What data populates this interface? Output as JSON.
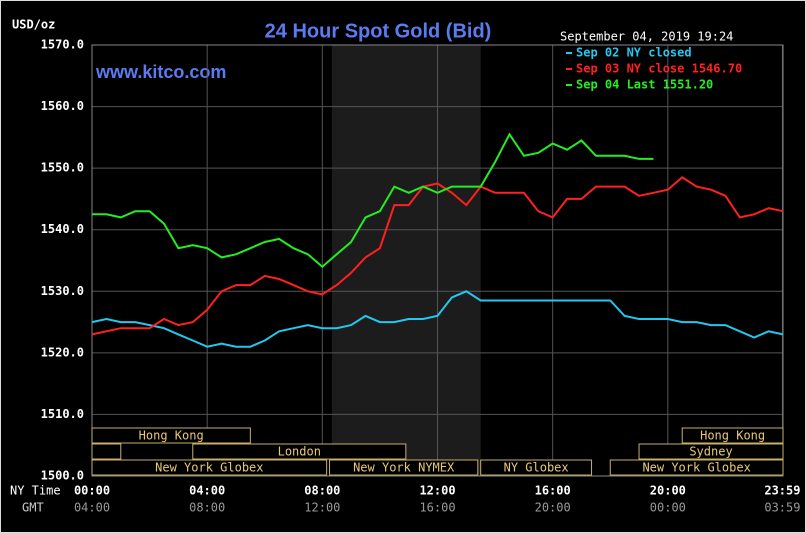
{
  "chart_data": {
    "type": "line",
    "title": "24 Hour Spot Gold (Bid)",
    "unit_label": "USD/oz",
    "timestamp": "September 04, 2019 19:24",
    "watermark": "www.kitco.com",
    "x_row_labels": [
      "NY Time",
      "GMT"
    ],
    "x": [
      0,
      0.5,
      1,
      1.5,
      2,
      2.5,
      3,
      3.5,
      4,
      4.5,
      5,
      5.5,
      6,
      6.5,
      7,
      7.5,
      8,
      8.5,
      9,
      9.5,
      10,
      10.5,
      11,
      11.5,
      12,
      12.5,
      13,
      13.5,
      14,
      14.5,
      15,
      15.5,
      16,
      16.5,
      17,
      17.5,
      18,
      18.5,
      19,
      19.5,
      20,
      20.5,
      21,
      21.5,
      22,
      22.5,
      23,
      23.5,
      24
    ],
    "series": [
      {
        "name": "Sep 02 NY closed",
        "color": "#22c8f0",
        "values": [
          1525,
          1525.5,
          1525,
          1525,
          1524.5,
          1524,
          1523,
          1522,
          1521,
          1521.5,
          1521,
          1521,
          1522,
          1523.5,
          1524,
          1524.5,
          1524,
          1524,
          1524.5,
          1526,
          1525,
          1525,
          1525.5,
          1525.5,
          1526,
          1529,
          1530,
          1528.5,
          1528.5,
          1528.5,
          1528.5,
          1528.5,
          1528.5,
          1528.5,
          1528.5,
          1528.5,
          1528.5,
          1526,
          1525.5,
          1525.5,
          1525.5,
          1525,
          1525,
          1524.5,
          1524.5,
          1523.5,
          1522.5,
          1523.5,
          1523
        ]
      },
      {
        "name": "Sep 03 NY close 1546.70",
        "color": "#ff2020",
        "values": [
          1523,
          1523.5,
          1524,
          1524,
          1524,
          1525.5,
          1524.5,
          1525,
          1527,
          1530,
          1531,
          1531,
          1532.5,
          1532,
          1531,
          1530,
          1529.5,
          1531,
          1533,
          1535.5,
          1537,
          1544,
          1544,
          1547,
          1547.5,
          1546,
          1544,
          1547,
          1546,
          1546,
          1546,
          1543,
          1542,
          1545,
          1545,
          1547,
          1547,
          1547,
          1545.5,
          1546,
          1546.5,
          1548.5,
          1547,
          1546.5,
          1545.5,
          1542,
          1542.5,
          1543.5,
          1543
        ]
      },
      {
        "name": "Sep 04 Last 1551.20",
        "color": "#22ee22",
        "values": [
          1542.5,
          1542.5,
          1542,
          1543,
          1543,
          1541,
          1537,
          1537.5,
          1537,
          1535.5,
          1536,
          1537,
          1538,
          1538.5,
          1537,
          1536,
          1534,
          1536,
          1538,
          1542,
          1543,
          1547,
          1546,
          1547,
          1546,
          1547,
          1547,
          1547,
          1551,
          1555.5,
          1552,
          1552.5,
          1554,
          1553,
          1554.5,
          1552,
          1552,
          1552,
          1551.5,
          1551.5,
          null,
          null,
          null,
          null,
          null,
          null,
          null,
          null,
          null
        ]
      }
    ],
    "xlim": [
      0,
      24
    ],
    "xticks": [
      {
        "value": 0,
        "label": "00:00"
      },
      {
        "value": 4,
        "label": "04:00"
      },
      {
        "value": 8,
        "label": "08:00"
      },
      {
        "value": 12,
        "label": "12:00"
      },
      {
        "value": 16,
        "label": "16:00"
      },
      {
        "value": 20,
        "label": "20:00"
      },
      {
        "value": 23.98,
        "label": "23:59"
      }
    ],
    "xticks_gmt": [
      "04:00",
      "08:00",
      "12:00",
      "16:00",
      "20:00",
      "00:00",
      "03:59"
    ],
    "ylim": [
      1500,
      1570
    ],
    "yticks": [
      {
        "value": 1500,
        "label": "1500.0"
      },
      {
        "value": 1510,
        "label": "1510.0"
      },
      {
        "value": 1520,
        "label": "1520.0"
      },
      {
        "value": 1530,
        "label": "1530.0"
      },
      {
        "value": 1540,
        "label": "1540.0"
      },
      {
        "value": 1550,
        "label": "1550.0"
      },
      {
        "value": 1560,
        "label": "1560.0"
      },
      {
        "value": 1570,
        "label": "1570.0"
      }
    ],
    "grid": true,
    "shaded": {
      "start": 8.33,
      "end": 13.5
    },
    "session_rows": [
      [
        {
          "name": "Hong Kong",
          "start": 0,
          "end": 5.5
        },
        {
          "name": "Hong Kong",
          "start": 20.5,
          "end": 24
        }
      ],
      [
        {
          "start": 0,
          "end": 1
        },
        {
          "name": "London",
          "start": 3.5,
          "end": 10.9
        },
        {
          "name": "Sydney",
          "start": 19,
          "end": 24
        }
      ],
      [
        {
          "name": "New York Globex",
          "start": 0,
          "end": 8.15
        },
        {
          "name": "New York NYMEX",
          "start": 8.25,
          "end": 13.4
        },
        {
          "name": "NY Globex",
          "start": 13.5,
          "end": 17.35
        },
        {
          "name": "New York Globex",
          "start": 18,
          "end": 24
        }
      ]
    ]
  }
}
